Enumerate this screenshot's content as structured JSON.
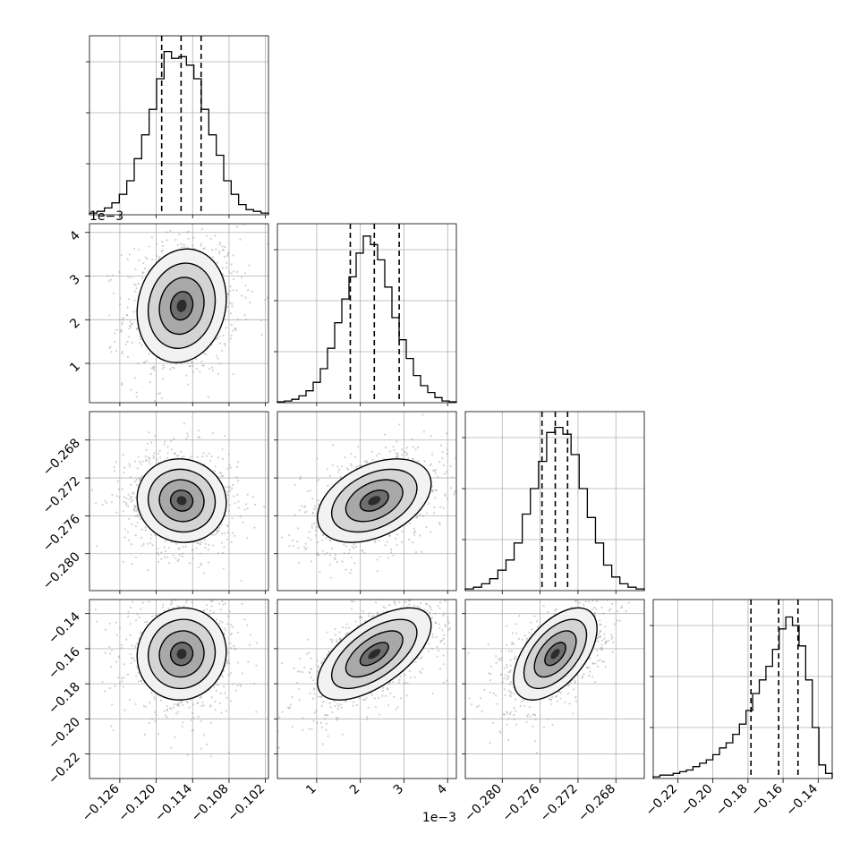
{
  "chart_data": {
    "type": "corner",
    "n_params": 4,
    "quantile_lines": "dashed",
    "grid": true,
    "params": [
      {
        "range": [
          -0.131,
          -0.1015
        ],
        "ticks": [
          -0.126,
          -0.12,
          -0.114,
          -0.108,
          -0.102
        ],
        "tick_labels": [
          "−0.126",
          "−0.120",
          "−0.114",
          "−0.108",
          "−0.102"
        ],
        "offset_label": "",
        "quantiles": [
          -0.1191,
          -0.1159,
          -0.1126
        ],
        "hist": [
          0.01,
          0.02,
          0.04,
          0.07,
          0.12,
          0.2,
          0.33,
          0.47,
          0.62,
          0.8,
          0.96,
          0.92,
          0.93,
          0.88,
          0.8,
          0.62,
          0.47,
          0.35,
          0.2,
          0.12,
          0.06,
          0.03,
          0.02,
          0.01
        ]
      },
      {
        "range": [
          0.0001,
          0.0042
        ],
        "ticks": [
          0.001,
          0.002,
          0.003,
          0.004
        ],
        "tick_labels": [
          "1",
          "2",
          "3",
          "4"
        ],
        "offset_label": "1e−3",
        "quantiles": [
          0.00177,
          0.00232,
          0.00289
        ],
        "hist": [
          0.005,
          0.01,
          0.02,
          0.04,
          0.07,
          0.12,
          0.2,
          0.32,
          0.47,
          0.61,
          0.74,
          0.88,
          0.98,
          0.93,
          0.84,
          0.68,
          0.5,
          0.37,
          0.26,
          0.16,
          0.1,
          0.06,
          0.03,
          0.01,
          0.005
        ]
      },
      {
        "range": [
          -0.2839,
          -0.265
        ],
        "ticks": [
          -0.28,
          -0.276,
          -0.272,
          -0.268
        ],
        "tick_labels": [
          "−0.280",
          "−0.276",
          "−0.272",
          "−0.268"
        ],
        "offset_label": "",
        "quantiles": [
          -0.2758,
          -0.2744,
          -0.2731
        ],
        "hist": [
          0.01,
          0.02,
          0.04,
          0.07,
          0.12,
          0.18,
          0.28,
          0.45,
          0.6,
          0.76,
          0.93,
          0.96,
          0.92,
          0.8,
          0.6,
          0.43,
          0.28,
          0.15,
          0.08,
          0.04,
          0.02,
          0.01
        ]
      },
      {
        "range": [
          -0.234,
          -0.132
        ],
        "ticks": [
          -0.22,
          -0.2,
          -0.18,
          -0.16,
          -0.14
        ],
        "tick_labels": [
          "−0.22",
          "−0.20",
          "−0.18",
          "−0.16",
          "−0.14"
        ],
        "offset_label": "",
        "quantiles": [
          -0.1783,
          -0.1625,
          -0.1515
        ],
        "hist": [
          0.01,
          0.02,
          0.02,
          0.03,
          0.04,
          0.05,
          0.07,
          0.09,
          0.11,
          0.14,
          0.18,
          0.21,
          0.26,
          0.32,
          0.4,
          0.5,
          0.58,
          0.66,
          0.76,
          0.88,
          0.95,
          0.9,
          0.78,
          0.58,
          0.3,
          0.08,
          0.03
        ]
      }
    ],
    "pairs": [
      {
        "row": 1,
        "col": 0,
        "mean": [
          -0.1158,
          0.00232
        ],
        "sd": [
          0.0035,
          0.00062
        ],
        "corr": 0.12
      },
      {
        "row": 2,
        "col": 0,
        "mean": [
          -0.1158,
          -0.2744
        ],
        "sd": [
          0.0035,
          0.0021
        ],
        "corr": -0.05
      },
      {
        "row": 2,
        "col": 1,
        "mean": [
          0.00232,
          -0.2744
        ],
        "sd": [
          0.00062,
          0.0021
        ],
        "corr": 0.4
      },
      {
        "row": 3,
        "col": 0,
        "mean": [
          -0.1158,
          -0.163
        ],
        "sd": [
          0.0035,
          0.0125
        ],
        "corr": 0.05
      },
      {
        "row": 3,
        "col": 1,
        "mean": [
          0.00232,
          -0.163
        ],
        "sd": [
          0.00062,
          0.0125
        ],
        "corr": 0.62
      },
      {
        "row": 3,
        "col": 2,
        "mean": [
          -0.2744,
          -0.163
        ],
        "sd": [
          0.0021,
          0.0125
        ],
        "corr": 0.55
      }
    ],
    "contour_levels_sigma": [
      0.5,
      1.0,
      1.5,
      2.0
    ]
  }
}
